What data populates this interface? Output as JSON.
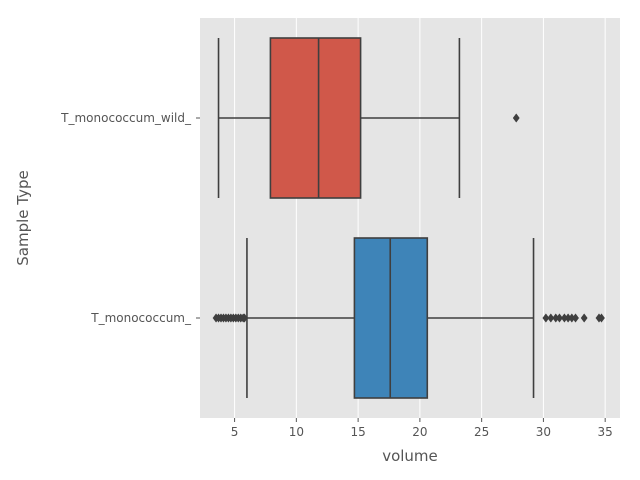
{
  "chart_data": {
    "type": "boxplot",
    "orientation": "horizontal",
    "xlabel": "volume",
    "ylabel": "Sample Type",
    "xlim": [
      2.2,
      36.2
    ],
    "xticks": [
      5,
      10,
      15,
      20,
      25,
      30,
      35
    ],
    "grid": true,
    "categories": [
      "T_monococcum_wild_",
      "T_monococcum_"
    ],
    "colors": {
      "T_monococcum_wild_": "#d0584a",
      "T_monococcum_": "#3e84b8"
    },
    "series": [
      {
        "category": "T_monococcum_wild_",
        "whisker_low": 3.7,
        "q1": 7.9,
        "median": 11.8,
        "q3": 15.2,
        "whisker_high": 23.2,
        "outliers": [
          27.8
        ]
      },
      {
        "category": "T_monococcum_",
        "whisker_low": 6.0,
        "q1": 14.7,
        "median": 17.6,
        "q3": 20.6,
        "whisker_high": 29.2,
        "outliers": [
          3.5,
          3.7,
          3.9,
          4.1,
          4.3,
          4.5,
          4.7,
          4.9,
          5.1,
          5.3,
          5.5,
          5.7,
          5.8,
          30.2,
          30.6,
          31.0,
          31.3,
          31.7,
          32.0,
          32.3,
          32.6,
          33.3,
          34.5,
          34.7
        ]
      }
    ]
  }
}
